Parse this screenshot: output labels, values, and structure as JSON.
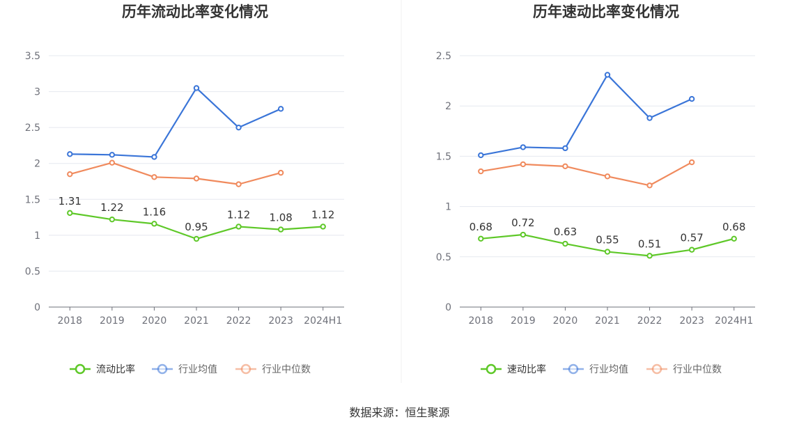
{
  "source": "数据来源：恒生聚源",
  "colors": {
    "main": "#5ec828",
    "avg": "#3a75d8",
    "median": "#f08a5d",
    "grid": "#e5e8ef",
    "axis": "#6e7079"
  },
  "chart_data": [
    {
      "type": "line",
      "title": "历年流动比率变化情况",
      "categories": [
        "2018",
        "2019",
        "2020",
        "2021",
        "2022",
        "2023",
        "2024H1"
      ],
      "ylim": [
        0,
        3.5
      ],
      "yticks": [
        "0",
        "0.5",
        "1",
        "1.5",
        "2",
        "2.5",
        "3",
        "3.5"
      ],
      "grid": true,
      "legend_position": "bottom",
      "series": [
        {
          "name": "流动比率",
          "key": "main",
          "values": [
            1.31,
            1.22,
            1.16,
            0.95,
            1.12,
            1.08,
            1.12
          ],
          "labels": [
            "1.31",
            "1.22",
            "1.16",
            "0.95",
            "1.12",
            "1.08",
            "1.12"
          ]
        },
        {
          "name": "行业均值",
          "key": "avg",
          "values": [
            2.13,
            2.12,
            2.09,
            3.05,
            2.5,
            2.76,
            null
          ]
        },
        {
          "name": "行业中位数",
          "key": "median",
          "values": [
            1.85,
            2.01,
            1.81,
            1.79,
            1.71,
            1.87,
            null
          ]
        }
      ]
    },
    {
      "type": "line",
      "title": "历年速动比率变化情况",
      "categories": [
        "2018",
        "2019",
        "2020",
        "2021",
        "2022",
        "2023",
        "2024H1"
      ],
      "ylim": [
        0,
        2.5
      ],
      "yticks": [
        "0",
        "0.5",
        "1",
        "1.5",
        "2",
        "2.5"
      ],
      "grid": true,
      "legend_position": "bottom",
      "series": [
        {
          "name": "速动比率",
          "key": "main",
          "values": [
            0.68,
            0.72,
            0.63,
            0.55,
            0.51,
            0.57,
            0.68
          ],
          "labels": [
            "0.68",
            "0.72",
            "0.63",
            "0.55",
            "0.51",
            "0.57",
            "0.68"
          ]
        },
        {
          "name": "行业均值",
          "key": "avg",
          "values": [
            1.51,
            1.59,
            1.58,
            2.31,
            1.88,
            2.07,
            null
          ]
        },
        {
          "name": "行业中位数",
          "key": "median",
          "values": [
            1.35,
            1.42,
            1.4,
            1.3,
            1.21,
            1.44,
            null
          ]
        }
      ]
    }
  ]
}
